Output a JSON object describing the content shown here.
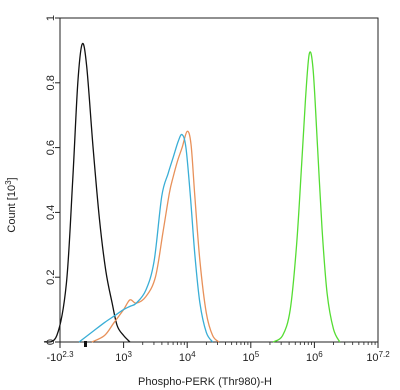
{
  "chart_data": {
    "type": "line",
    "title": "",
    "xlabel": "Phospho-PERK (Thr980)-H",
    "ylabel": "Count [10",
    "ylabel_exponent": "3",
    "ylabel_suffix": "]",
    "grid": false,
    "legend": "none",
    "x_scale": "biexponential log",
    "y_range": [
      0,
      1
    ],
    "x_ticks": [
      {
        "base": "-10",
        "exp": "2.3"
      },
      {
        "base": "10",
        "exp": "3"
      },
      {
        "base": "10",
        "exp": "4"
      },
      {
        "base": "10",
        "exp": "5"
      },
      {
        "base": "10",
        "exp": "6"
      },
      {
        "base": "10",
        "exp": "7.2"
      }
    ],
    "y_ticks": [
      "0",
      "0.2",
      "0.4",
      "0.6",
      "0.8",
      "1"
    ],
    "series": [
      {
        "color": "#111111",
        "points": [
          [
            -0.25,
            0
          ],
          [
            -0.05,
            0.02
          ],
          [
            0.1,
            0.18
          ],
          [
            0.2,
            0.5
          ],
          [
            0.28,
            0.8
          ],
          [
            0.35,
            0.92
          ],
          [
            0.42,
            0.85
          ],
          [
            0.52,
            0.6
          ],
          [
            0.62,
            0.38
          ],
          [
            0.72,
            0.22
          ],
          [
            0.82,
            0.12
          ],
          [
            0.9,
            0.05
          ],
          [
            1.0,
            0.02
          ],
          [
            1.1,
            0
          ]
        ]
      },
      {
        "color": "#e8915a",
        "points": [
          [
            0.5,
            0
          ],
          [
            0.7,
            0.02
          ],
          [
            0.85,
            0.06
          ],
          [
            1.0,
            0.1
          ],
          [
            1.1,
            0.13
          ],
          [
            1.2,
            0.12
          ],
          [
            1.35,
            0.14
          ],
          [
            1.5,
            0.2
          ],
          [
            1.62,
            0.34
          ],
          [
            1.72,
            0.46
          ],
          [
            1.78,
            0.51
          ],
          [
            1.85,
            0.56
          ],
          [
            1.92,
            0.6
          ],
          [
            2.0,
            0.65
          ],
          [
            2.06,
            0.61
          ],
          [
            2.12,
            0.45
          ],
          [
            2.2,
            0.25
          ],
          [
            2.3,
            0.09
          ],
          [
            2.4,
            0.02
          ],
          [
            2.5,
            0
          ]
        ]
      },
      {
        "color": "#3aaed6",
        "points": [
          [
            0.3,
            0
          ],
          [
            0.5,
            0.03
          ],
          [
            0.7,
            0.06
          ],
          [
            0.85,
            0.08
          ],
          [
            1.0,
            0.1
          ],
          [
            1.1,
            0.11
          ],
          [
            1.2,
            0.12
          ],
          [
            1.35,
            0.16
          ],
          [
            1.48,
            0.25
          ],
          [
            1.6,
            0.45
          ],
          [
            1.7,
            0.52
          ],
          [
            1.78,
            0.57
          ],
          [
            1.86,
            0.62
          ],
          [
            1.92,
            0.64
          ],
          [
            1.98,
            0.6
          ],
          [
            2.05,
            0.45
          ],
          [
            2.12,
            0.27
          ],
          [
            2.2,
            0.12
          ],
          [
            2.3,
            0.03
          ],
          [
            2.4,
            0
          ]
        ]
      },
      {
        "color": "#55dd33",
        "points": [
          [
            3.35,
            0
          ],
          [
            3.5,
            0.02
          ],
          [
            3.62,
            0.1
          ],
          [
            3.72,
            0.3
          ],
          [
            3.8,
            0.55
          ],
          [
            3.86,
            0.75
          ],
          [
            3.92,
            0.89
          ],
          [
            3.98,
            0.84
          ],
          [
            4.05,
            0.6
          ],
          [
            4.12,
            0.35
          ],
          [
            4.2,
            0.15
          ],
          [
            4.3,
            0.04
          ],
          [
            4.4,
            0
          ]
        ]
      }
    ]
  }
}
